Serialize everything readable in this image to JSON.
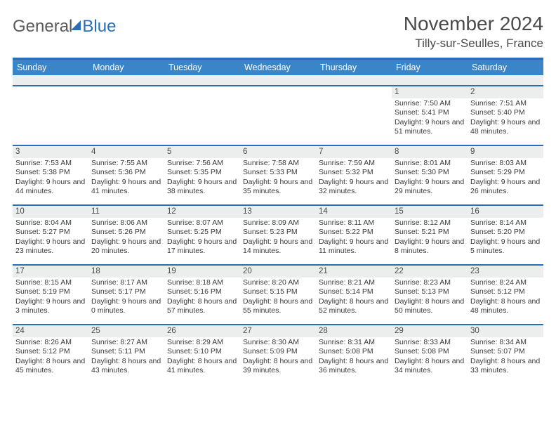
{
  "logo": {
    "text1": "General",
    "text2": "Blue"
  },
  "title": "November 2024",
  "location": "Tilly-sur-Seulles, France",
  "day_headers": [
    "Sunday",
    "Monday",
    "Tuesday",
    "Wednesday",
    "Thursday",
    "Friday",
    "Saturday"
  ],
  "colors": {
    "header_bar": "#3a85c8",
    "accent": "#2a6fb5",
    "daynum_bg": "#eceded",
    "text": "#3a3a3a"
  },
  "weeks": [
    [
      null,
      null,
      null,
      null,
      null,
      {
        "n": "1",
        "sr": "Sunrise: 7:50 AM",
        "ss": "Sunset: 5:41 PM",
        "dl": "Daylight: 9 hours and 51 minutes."
      },
      {
        "n": "2",
        "sr": "Sunrise: 7:51 AM",
        "ss": "Sunset: 5:40 PM",
        "dl": "Daylight: 9 hours and 48 minutes."
      }
    ],
    [
      {
        "n": "3",
        "sr": "Sunrise: 7:53 AM",
        "ss": "Sunset: 5:38 PM",
        "dl": "Daylight: 9 hours and 44 minutes."
      },
      {
        "n": "4",
        "sr": "Sunrise: 7:55 AM",
        "ss": "Sunset: 5:36 PM",
        "dl": "Daylight: 9 hours and 41 minutes."
      },
      {
        "n": "5",
        "sr": "Sunrise: 7:56 AM",
        "ss": "Sunset: 5:35 PM",
        "dl": "Daylight: 9 hours and 38 minutes."
      },
      {
        "n": "6",
        "sr": "Sunrise: 7:58 AM",
        "ss": "Sunset: 5:33 PM",
        "dl": "Daylight: 9 hours and 35 minutes."
      },
      {
        "n": "7",
        "sr": "Sunrise: 7:59 AM",
        "ss": "Sunset: 5:32 PM",
        "dl": "Daylight: 9 hours and 32 minutes."
      },
      {
        "n": "8",
        "sr": "Sunrise: 8:01 AM",
        "ss": "Sunset: 5:30 PM",
        "dl": "Daylight: 9 hours and 29 minutes."
      },
      {
        "n": "9",
        "sr": "Sunrise: 8:03 AM",
        "ss": "Sunset: 5:29 PM",
        "dl": "Daylight: 9 hours and 26 minutes."
      }
    ],
    [
      {
        "n": "10",
        "sr": "Sunrise: 8:04 AM",
        "ss": "Sunset: 5:27 PM",
        "dl": "Daylight: 9 hours and 23 minutes."
      },
      {
        "n": "11",
        "sr": "Sunrise: 8:06 AM",
        "ss": "Sunset: 5:26 PM",
        "dl": "Daylight: 9 hours and 20 minutes."
      },
      {
        "n": "12",
        "sr": "Sunrise: 8:07 AM",
        "ss": "Sunset: 5:25 PM",
        "dl": "Daylight: 9 hours and 17 minutes."
      },
      {
        "n": "13",
        "sr": "Sunrise: 8:09 AM",
        "ss": "Sunset: 5:23 PM",
        "dl": "Daylight: 9 hours and 14 minutes."
      },
      {
        "n": "14",
        "sr": "Sunrise: 8:11 AM",
        "ss": "Sunset: 5:22 PM",
        "dl": "Daylight: 9 hours and 11 minutes."
      },
      {
        "n": "15",
        "sr": "Sunrise: 8:12 AM",
        "ss": "Sunset: 5:21 PM",
        "dl": "Daylight: 9 hours and 8 minutes."
      },
      {
        "n": "16",
        "sr": "Sunrise: 8:14 AM",
        "ss": "Sunset: 5:20 PM",
        "dl": "Daylight: 9 hours and 5 minutes."
      }
    ],
    [
      {
        "n": "17",
        "sr": "Sunrise: 8:15 AM",
        "ss": "Sunset: 5:19 PM",
        "dl": "Daylight: 9 hours and 3 minutes."
      },
      {
        "n": "18",
        "sr": "Sunrise: 8:17 AM",
        "ss": "Sunset: 5:17 PM",
        "dl": "Daylight: 9 hours and 0 minutes."
      },
      {
        "n": "19",
        "sr": "Sunrise: 8:18 AM",
        "ss": "Sunset: 5:16 PM",
        "dl": "Daylight: 8 hours and 57 minutes."
      },
      {
        "n": "20",
        "sr": "Sunrise: 8:20 AM",
        "ss": "Sunset: 5:15 PM",
        "dl": "Daylight: 8 hours and 55 minutes."
      },
      {
        "n": "21",
        "sr": "Sunrise: 8:21 AM",
        "ss": "Sunset: 5:14 PM",
        "dl": "Daylight: 8 hours and 52 minutes."
      },
      {
        "n": "22",
        "sr": "Sunrise: 8:23 AM",
        "ss": "Sunset: 5:13 PM",
        "dl": "Daylight: 8 hours and 50 minutes."
      },
      {
        "n": "23",
        "sr": "Sunrise: 8:24 AM",
        "ss": "Sunset: 5:12 PM",
        "dl": "Daylight: 8 hours and 48 minutes."
      }
    ],
    [
      {
        "n": "24",
        "sr": "Sunrise: 8:26 AM",
        "ss": "Sunset: 5:12 PM",
        "dl": "Daylight: 8 hours and 45 minutes."
      },
      {
        "n": "25",
        "sr": "Sunrise: 8:27 AM",
        "ss": "Sunset: 5:11 PM",
        "dl": "Daylight: 8 hours and 43 minutes."
      },
      {
        "n": "26",
        "sr": "Sunrise: 8:29 AM",
        "ss": "Sunset: 5:10 PM",
        "dl": "Daylight: 8 hours and 41 minutes."
      },
      {
        "n": "27",
        "sr": "Sunrise: 8:30 AM",
        "ss": "Sunset: 5:09 PM",
        "dl": "Daylight: 8 hours and 39 minutes."
      },
      {
        "n": "28",
        "sr": "Sunrise: 8:31 AM",
        "ss": "Sunset: 5:08 PM",
        "dl": "Daylight: 8 hours and 36 minutes."
      },
      {
        "n": "29",
        "sr": "Sunrise: 8:33 AM",
        "ss": "Sunset: 5:08 PM",
        "dl": "Daylight: 8 hours and 34 minutes."
      },
      {
        "n": "30",
        "sr": "Sunrise: 8:34 AM",
        "ss": "Sunset: 5:07 PM",
        "dl": "Daylight: 8 hours and 33 minutes."
      }
    ]
  ]
}
